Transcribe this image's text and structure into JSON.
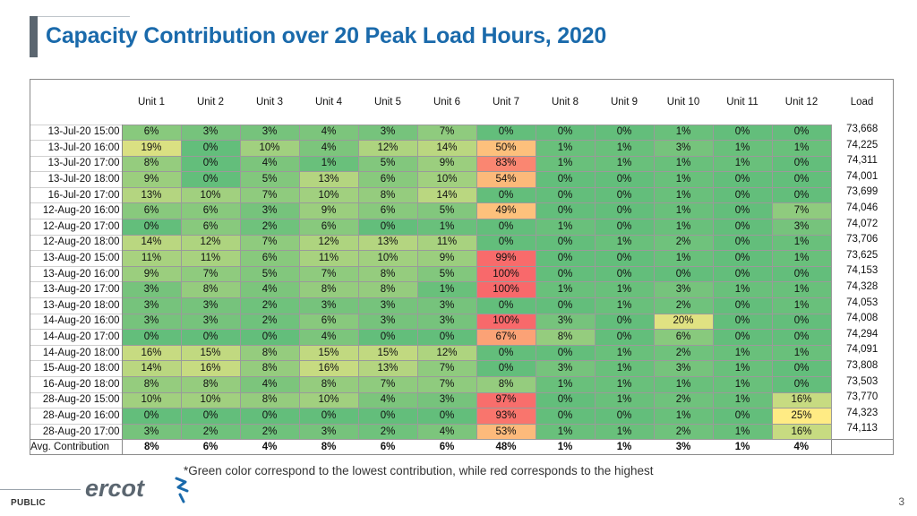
{
  "title": "Capacity Contribution over 20 Peak Load Hours, 2020",
  "headers": [
    "Unit 1",
    "Unit 2",
    "Unit 3",
    "Unit 4",
    "Unit 5",
    "Unit 6",
    "Unit 7",
    "Unit 8",
    "Unit 9",
    "Unit 10",
    "Unit 11",
    "Unit 12",
    "Load"
  ],
  "rows": [
    {
      "time": "13-Jul-20 15:00",
      "cells": [
        "6%",
        "3%",
        "3%",
        "4%",
        "3%",
        "7%",
        "0%",
        "0%",
        "0%",
        "1%",
        "0%",
        "0%"
      ],
      "load": "73,668"
    },
    {
      "time": "13-Jul-20 16:00",
      "cells": [
        "19%",
        "0%",
        "10%",
        "4%",
        "12%",
        "14%",
        "50%",
        "1%",
        "1%",
        "3%",
        "1%",
        "1%"
      ],
      "load": "74,225"
    },
    {
      "time": "13-Jul-20 17:00",
      "cells": [
        "8%",
        "0%",
        "4%",
        "1%",
        "5%",
        "9%",
        "83%",
        "1%",
        "1%",
        "1%",
        "1%",
        "0%"
      ],
      "load": "74,311"
    },
    {
      "time": "13-Jul-20 18:00",
      "cells": [
        "9%",
        "0%",
        "5%",
        "13%",
        "6%",
        "10%",
        "54%",
        "0%",
        "0%",
        "1%",
        "0%",
        "0%"
      ],
      "load": "74,001"
    },
    {
      "time": "16-Jul-20 17:00",
      "cells": [
        "13%",
        "10%",
        "7%",
        "10%",
        "8%",
        "14%",
        "0%",
        "0%",
        "0%",
        "1%",
        "0%",
        "0%"
      ],
      "load": "73,699"
    },
    {
      "time": "12-Aug-20 16:00",
      "cells": [
        "6%",
        "6%",
        "3%",
        "9%",
        "6%",
        "5%",
        "49%",
        "0%",
        "0%",
        "1%",
        "0%",
        "7%"
      ],
      "load": "74,046"
    },
    {
      "time": "12-Aug-20 17:00",
      "cells": [
        "0%",
        "6%",
        "2%",
        "6%",
        "0%",
        "1%",
        "0%",
        "1%",
        "0%",
        "1%",
        "0%",
        "3%"
      ],
      "load": "74,072"
    },
    {
      "time": "12-Aug-20 18:00",
      "cells": [
        "14%",
        "12%",
        "7%",
        "12%",
        "13%",
        "11%",
        "0%",
        "0%",
        "1%",
        "2%",
        "0%",
        "1%"
      ],
      "load": "73,706"
    },
    {
      "time": "13-Aug-20 15:00",
      "cells": [
        "11%",
        "11%",
        "6%",
        "11%",
        "10%",
        "9%",
        "99%",
        "0%",
        "0%",
        "1%",
        "0%",
        "1%"
      ],
      "load": "73,625"
    },
    {
      "time": "13-Aug-20 16:00",
      "cells": [
        "9%",
        "7%",
        "5%",
        "7%",
        "8%",
        "5%",
        "100%",
        "0%",
        "0%",
        "0%",
        "0%",
        "0%"
      ],
      "load": "74,153"
    },
    {
      "time": "13-Aug-20 17:00",
      "cells": [
        "3%",
        "8%",
        "4%",
        "8%",
        "8%",
        "1%",
        "100%",
        "1%",
        "1%",
        "3%",
        "1%",
        "1%"
      ],
      "load": "74,328"
    },
    {
      "time": "13-Aug-20 18:00",
      "cells": [
        "3%",
        "3%",
        "2%",
        "3%",
        "3%",
        "3%",
        "0%",
        "0%",
        "1%",
        "2%",
        "0%",
        "1%"
      ],
      "load": "74,053"
    },
    {
      "time": "14-Aug-20 16:00",
      "cells": [
        "3%",
        "3%",
        "2%",
        "6%",
        "3%",
        "3%",
        "100%",
        "3%",
        "0%",
        "20%",
        "0%",
        "0%"
      ],
      "load": "74,008"
    },
    {
      "time": "14-Aug-20 17:00",
      "cells": [
        "0%",
        "0%",
        "0%",
        "4%",
        "0%",
        "0%",
        "67%",
        "8%",
        "0%",
        "6%",
        "0%",
        "0%"
      ],
      "load": "74,294"
    },
    {
      "time": "14-Aug-20 18:00",
      "cells": [
        "16%",
        "15%",
        "8%",
        "15%",
        "15%",
        "12%",
        "0%",
        "0%",
        "1%",
        "2%",
        "1%",
        "1%"
      ],
      "load": "74,091"
    },
    {
      "time": "15-Aug-20 18:00",
      "cells": [
        "14%",
        "16%",
        "8%",
        "16%",
        "13%",
        "7%",
        "0%",
        "3%",
        "1%",
        "3%",
        "1%",
        "0%"
      ],
      "load": "73,808"
    },
    {
      "time": "16-Aug-20 18:00",
      "cells": [
        "8%",
        "8%",
        "4%",
        "8%",
        "7%",
        "7%",
        "8%",
        "1%",
        "1%",
        "1%",
        "1%",
        "0%"
      ],
      "load": "73,503"
    },
    {
      "time": "28-Aug-20 15:00",
      "cells": [
        "10%",
        "10%",
        "8%",
        "10%",
        "4%",
        "3%",
        "97%",
        "0%",
        "1%",
        "2%",
        "1%",
        "16%"
      ],
      "load": "73,770"
    },
    {
      "time": "28-Aug-20 16:00",
      "cells": [
        "0%",
        "0%",
        "0%",
        "0%",
        "0%",
        "0%",
        "93%",
        "0%",
        "0%",
        "1%",
        "0%",
        "25%"
      ],
      "load": "74,323"
    },
    {
      "time": "28-Aug-20 17:00",
      "cells": [
        "3%",
        "2%",
        "2%",
        "3%",
        "2%",
        "4%",
        "53%",
        "1%",
        "1%",
        "2%",
        "1%",
        "16%"
      ],
      "load": "74,113"
    }
  ],
  "avg": {
    "label": "Avg. Contribution",
    "cells": [
      "8%",
      "6%",
      "4%",
      "8%",
      "6%",
      "6%",
      "48%",
      "1%",
      "1%",
      "3%",
      "1%",
      "4%"
    ]
  },
  "footnote": "*Green color correspond to the lowest contribution, while red corresponds to the highest",
  "logo_text": "ercot",
  "classification": "PUBLIC",
  "page_number": "3",
  "colors": {
    "title": "#1a6aab",
    "heat_low": "#63be7b",
    "heat_mid": "#ffeb84",
    "heat_high": "#f8696b"
  }
}
